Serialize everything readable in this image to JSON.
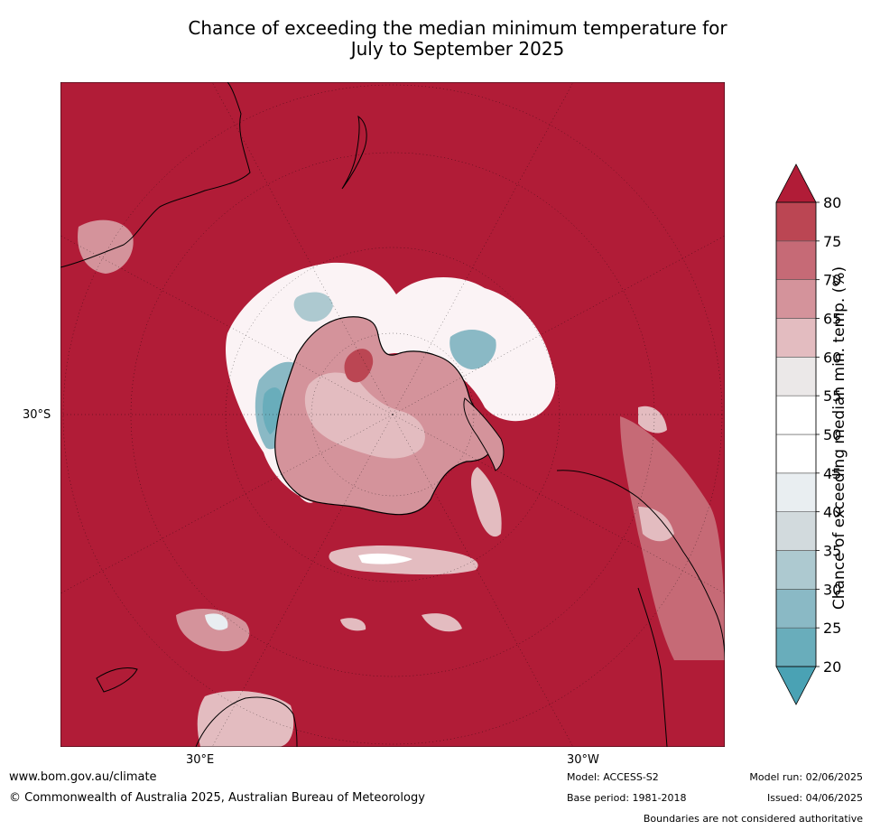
{
  "title": {
    "line1": "Chance of exceeding the median minimum temperature for",
    "line2": "July to September 2025"
  },
  "map": {
    "projection": "south polar stereographic",
    "background_color": "#b11c37",
    "lat_label": "30°S",
    "lon_labels": [
      "30°E",
      "30°W"
    ]
  },
  "colorbar": {
    "label": "Chance of exceeding median min. temp. (%)",
    "ticks": [
      "20",
      "25",
      "30",
      "35",
      "40",
      "45",
      "50",
      "55",
      "60",
      "65",
      "70",
      "75",
      "80"
    ],
    "bins": [
      {
        "range": "<20",
        "color": "#4aa2b4"
      },
      {
        "range": "20-25",
        "color": "#69adbb"
      },
      {
        "range": "25-30",
        "color": "#8ab9c5"
      },
      {
        "range": "30-35",
        "color": "#adc9d0"
      },
      {
        "range": "35-40",
        "color": "#d2dadd"
      },
      {
        "range": "40-45",
        "color": "#e9eef1"
      },
      {
        "range": "45-50",
        "color": "#ffffff"
      },
      {
        "range": "50-55",
        "color": "#ffffff"
      },
      {
        "range": "55-60",
        "color": "#ebe8e8"
      },
      {
        "range": "60-65",
        "color": "#e3bcc0"
      },
      {
        "range": "65-70",
        "color": "#d4939b"
      },
      {
        "range": "70-75",
        "color": "#c66a76"
      },
      {
        "range": "75-80",
        "color": "#bb4653"
      },
      {
        "range": ">80",
        "color": "#b11c37"
      }
    ]
  },
  "footer": {
    "website": "www.bom.gov.au/climate",
    "copyright": "© Commonwealth of Australia 2025, Australian Bureau of Meteorology",
    "model": "Model: ACCESS-S2",
    "base_period": "Base period: 1981-2018",
    "model_run": "Model run: 02/06/2025",
    "issued": "Issued: 04/06/2025",
    "disclaimer": "Boundaries are not considered authoritative"
  }
}
